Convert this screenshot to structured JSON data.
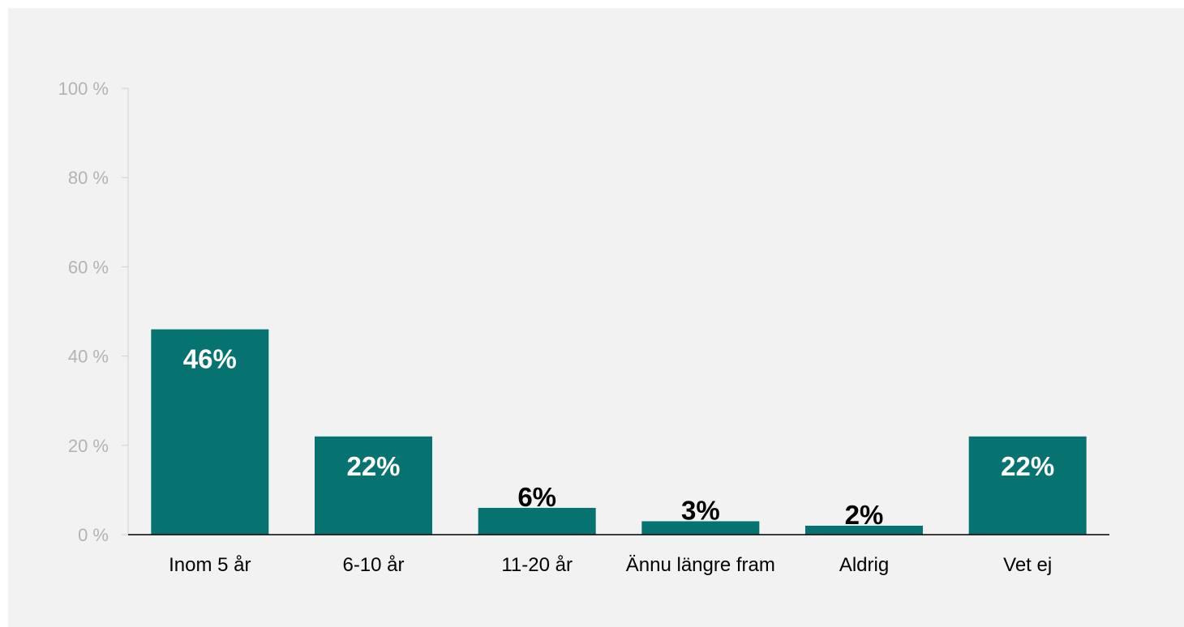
{
  "chart_data": {
    "type": "bar",
    "categories": [
      "Inom 5 år",
      "6-10 år",
      "11-20 år",
      "Ännu längre fram",
      "Aldrig",
      "Vet ej"
    ],
    "values": [
      46,
      22,
      6,
      3,
      2,
      22
    ],
    "data_labels": [
      "46%",
      "22%",
      "6%",
      "3%",
      "2%",
      "22%"
    ],
    "yticks": [
      0,
      20,
      40,
      60,
      80,
      100
    ],
    "ytick_labels": [
      "0 %",
      "20 %",
      "40 %",
      "60 %",
      "80 %",
      "100 %"
    ],
    "ylim": [
      0,
      100
    ],
    "grid": false,
    "bar_color": "#077370",
    "label_inside_color": "#ffffff",
    "label_outside_color": "#000000"
  }
}
